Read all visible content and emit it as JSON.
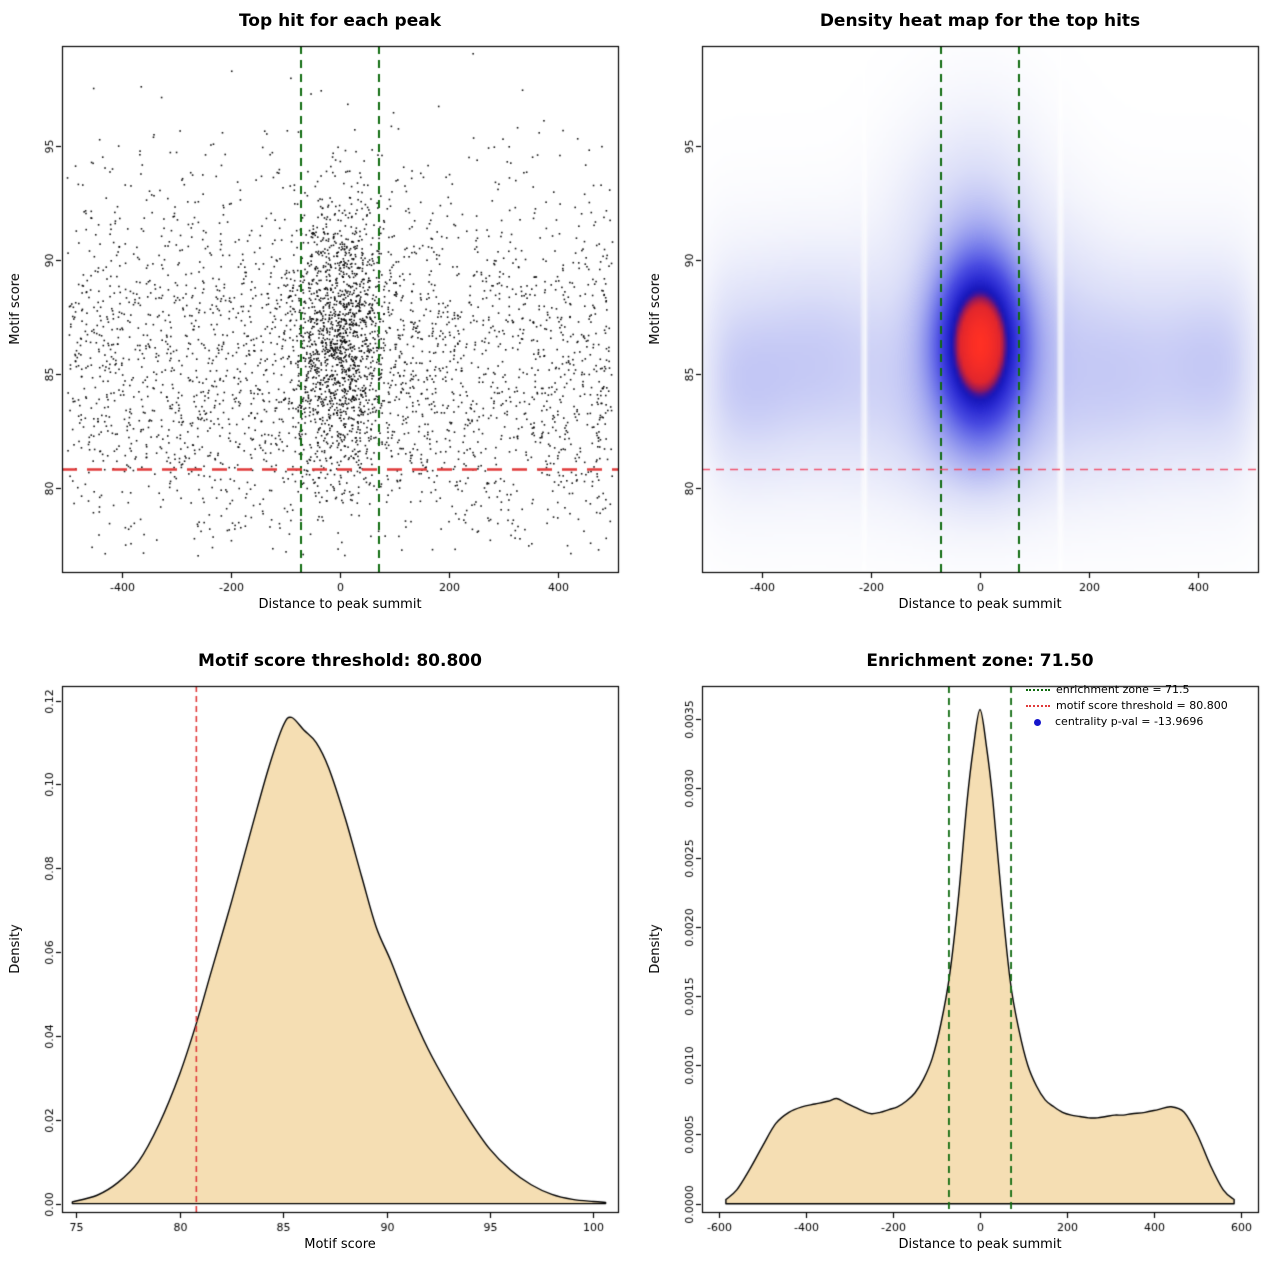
{
  "figure_background": "#ffffff",
  "chart_data": [
    {
      "id": "top-hit-scatter",
      "type": "scatter",
      "title": "Top hit for each peak",
      "xlabel": "Distance to peak summit",
      "ylabel": "Motif score",
      "xlim": [
        -510,
        510
      ],
      "ylim": [
        76.3,
        99.4
      ],
      "xticks": [
        -400,
        -200,
        0,
        200,
        400
      ],
      "yticks": [
        80,
        85,
        90,
        95
      ],
      "points": {
        "seed": 42,
        "color": "#000000",
        "size": 1.6,
        "n_background": 2800,
        "bg_x_range": [
          -500,
          500
        ],
        "bg_y_mean": 85.2,
        "bg_y_sd": 4.3,
        "n_cluster": 1400,
        "cluster_x_sd": 48,
        "cluster_x_clip": 230,
        "cluster_y_mean": 86.6,
        "cluster_y_sd": 3.0,
        "y_clip": [
          77.0,
          99.2
        ]
      },
      "vlines": [
        {
          "x": -71.5,
          "color": "#0f6b0f",
          "dash": [
            8,
            6
          ],
          "width": 2
        },
        {
          "x": 71.5,
          "color": "#0f6b0f",
          "dash": [
            8,
            6
          ],
          "width": 2
        }
      ],
      "hlines": [
        {
          "y": 80.8,
          "color": "#e03a3a",
          "dash": [
            15,
            10
          ],
          "width": 2.4
        }
      ]
    },
    {
      "id": "density-heatmap",
      "type": "heatmap",
      "title": "Density heat map for the top hits",
      "xlabel": "Distance to peak summit",
      "ylabel": "Motif score",
      "xlim": [
        -510,
        510
      ],
      "ylim": [
        76.3,
        99.4
      ],
      "xticks": [
        -400,
        -200,
        0,
        200,
        400
      ],
      "yticks": [
        80,
        85,
        90,
        95
      ],
      "density_model": {
        "band": {
          "w": 0.3,
          "y0": 85.3,
          "ysd": 3.6,
          "x_edge": 500,
          "edge_scale": 18
        },
        "blobs": [
          {
            "w": 1.0,
            "x0": 0,
            "xsd": 60,
            "y0": 86.5,
            "ysd": 3.0
          },
          {
            "w": 1.2,
            "x0": 0,
            "xsd": 50,
            "y0": 86.3,
            "ysd": 2.2
          },
          {
            "w": 0.22,
            "x0": 0,
            "xsd": 80,
            "y0": 92.5,
            "ysd": 3.2
          },
          {
            "w": 0.18,
            "x0": 0,
            "xsd": 110,
            "y0": 81.8,
            "ysd": 2.2
          },
          {
            "w": 0.1,
            "x0": -430,
            "xsd": 60,
            "y0": 84.0,
            "ysd": 2.5
          },
          {
            "w": 0.08,
            "x0": -300,
            "xsd": 70,
            "y0": 86.0,
            "ysd": 3.0
          },
          {
            "w": 0.06,
            "x0": -120,
            "xsd": 60,
            "y0": 92.5,
            "ysd": 2.5
          },
          {
            "w": 0.08,
            "x0": 250,
            "xsd": 80,
            "y0": 84.5,
            "ysd": 3.0
          },
          {
            "w": 0.09,
            "x0": 430,
            "xsd": 60,
            "y0": 85.5,
            "ysd": 2.5
          },
          {
            "w": 0.06,
            "x0": 150,
            "xsd": 60,
            "y0": 89.5,
            "ysd": 3.0
          }
        ],
        "streaks": [
          {
            "x": -213,
            "sd": 3.5,
            "strength": 0.92
          },
          {
            "x": 148,
            "sd": 3.5,
            "strength": 0.92
          }
        ],
        "gamma": 0.9,
        "colormap": [
          [
            0.0,
            255,
            255,
            255
          ],
          [
            0.05,
            243,
            244,
            252
          ],
          [
            0.13,
            219,
            222,
            248
          ],
          [
            0.25,
            172,
            177,
            242
          ],
          [
            0.38,
            118,
            124,
            235
          ],
          [
            0.5,
            74,
            76,
            226
          ],
          [
            0.62,
            42,
            42,
            210
          ],
          [
            0.7,
            24,
            24,
            188
          ],
          [
            0.74,
            60,
            20,
            160
          ],
          [
            0.78,
            150,
            25,
            90
          ],
          [
            0.84,
            225,
            38,
            45
          ],
          [
            1.0,
            255,
            48,
            36
          ]
        ]
      },
      "vlines": [
        {
          "x": -71.5,
          "color": "#0f6b0f",
          "dash": [
            8,
            6
          ],
          "width": 2
        },
        {
          "x": 71.5,
          "color": "#0f6b0f",
          "dash": [
            8,
            6
          ],
          "width": 2
        }
      ],
      "hlines": [
        {
          "y": 80.8,
          "color": "#f05570",
          "dash": [
            8,
            6
          ],
          "width": 1.5
        }
      ]
    },
    {
      "id": "motif-score-density",
      "type": "area",
      "title": "Motif score threshold: 80.800",
      "xlabel": "Motif score",
      "ylabel": "Density",
      "xlim": [
        74.3,
        101.2
      ],
      "ylim": [
        -0.002,
        0.1235
      ],
      "xticks": [
        75,
        80,
        85,
        90,
        95,
        100
      ],
      "yticks": [
        0,
        0.02,
        0.04,
        0.06,
        0.08,
        0.1,
        0.12
      ],
      "ytick_labels": [
        "0.00",
        "0.02",
        "0.04",
        "0.06",
        "0.08",
        "0.10",
        "0.12"
      ],
      "fill": "#F5DEB3",
      "stroke": "#000000",
      "curve": {
        "x": [
          74.8,
          76,
          77,
          78,
          79,
          80,
          80.8,
          81.5,
          82.5,
          83.5,
          84.3,
          85.0,
          85.4,
          86.0,
          86.6,
          87.2,
          88.0,
          88.8,
          89.5,
          90.2,
          91,
          92,
          93,
          94,
          95,
          96,
          97,
          98,
          99,
          100,
          100.6
        ],
        "y": [
          0.0004,
          0.002,
          0.005,
          0.01,
          0.019,
          0.031,
          0.043,
          0.055,
          0.072,
          0.09,
          0.104,
          0.114,
          0.116,
          0.113,
          0.11,
          0.104,
          0.092,
          0.078,
          0.066,
          0.058,
          0.048,
          0.037,
          0.028,
          0.02,
          0.013,
          0.008,
          0.0045,
          0.0022,
          0.001,
          0.0005,
          0.0003
        ]
      },
      "vlines": [
        {
          "x": 80.8,
          "color": "#e03a3a",
          "dash": [
            6,
            4
          ],
          "width": 1.6
        }
      ],
      "hlines": []
    },
    {
      "id": "distance-density",
      "type": "area",
      "title": "Enrichment zone: 71.50",
      "xlabel": "Distance to peak summit",
      "ylabel": "Density",
      "xlim": [
        -640,
        640
      ],
      "ylim": [
        -6e-05,
        0.00374
      ],
      "xticks": [
        -600,
        -400,
        -200,
        0,
        200,
        400,
        600
      ],
      "yticks": [
        0,
        0.0005,
        0.001,
        0.0015,
        0.002,
        0.0025,
        0.003,
        0.0035
      ],
      "ytick_labels": [
        "0.0000",
        "0.0005",
        "0.0010",
        "0.0015",
        "0.0020",
        "0.0025",
        "0.0030",
        "0.0035"
      ],
      "fill": "#F5DEB3",
      "stroke": "#000000",
      "curve": {
        "x": [
          -585,
          -560,
          -530,
          -500,
          -470,
          -440,
          -410,
          -380,
          -350,
          -330,
          -310,
          -290,
          -270,
          -250,
          -230,
          -210,
          -190,
          -170,
          -150,
          -130,
          -110,
          -90,
          -70,
          -50,
          -30,
          -15,
          0,
          15,
          30,
          50,
          70,
          90,
          110,
          130,
          150,
          170,
          190,
          210,
          230,
          250,
          270,
          290,
          310,
          330,
          350,
          380,
          410,
          440,
          470,
          500,
          530,
          560,
          585
        ],
        "y": [
          3e-05,
          0.0001,
          0.00025,
          0.00042,
          0.00058,
          0.00066,
          0.0007,
          0.00072,
          0.00074,
          0.00076,
          0.00073,
          0.0007,
          0.00067,
          0.00065,
          0.00066,
          0.00068,
          0.0007,
          0.00074,
          0.0008,
          0.0009,
          0.00105,
          0.0013,
          0.00165,
          0.0022,
          0.0029,
          0.0033,
          0.00357,
          0.0033,
          0.0029,
          0.0022,
          0.0016,
          0.00125,
          0.001,
          0.00085,
          0.00075,
          0.0007,
          0.00066,
          0.00064,
          0.00063,
          0.00062,
          0.00062,
          0.00063,
          0.00064,
          0.00064,
          0.00065,
          0.00066,
          0.00068,
          0.0007,
          0.00066,
          0.0005,
          0.00028,
          0.0001,
          3e-05
        ]
      },
      "vlines": [
        {
          "x": -71.5,
          "color": "#0f6b0f",
          "dash": [
            7,
            5
          ],
          "width": 1.8
        },
        {
          "x": 71.5,
          "color": "#0f6b0f",
          "dash": [
            7,
            5
          ],
          "width": 1.8
        }
      ],
      "hlines": [],
      "legend": {
        "items": [
          {
            "label": "enrichment zone = 71.5",
            "swatch": "line",
            "color": "#0f6b0f"
          },
          {
            "label": "motif score threshold = 80.800",
            "swatch": "line",
            "color": "#e03a3a"
          },
          {
            "label": "centrality p-val = -13.9696",
            "swatch": "dot",
            "color": "#1515cc"
          }
        ]
      }
    }
  ]
}
